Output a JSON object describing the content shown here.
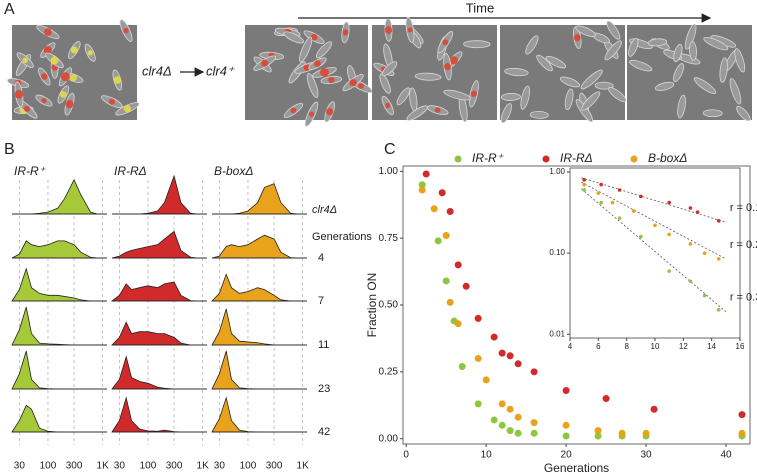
{
  "panel_a": {
    "label": "A",
    "time_label": "Time",
    "from_label": "clr4Δ",
    "to_label": "clr4⁺"
  },
  "panel_b": {
    "label": "B",
    "row_labels": [
      "clr4Δ",
      "4",
      "7",
      "11",
      "23",
      "42"
    ],
    "row_header": "Generations",
    "x": [
      22,
      30,
      40,
      50,
      70,
      100,
      150,
      200,
      300,
      400,
      600,
      800,
      1200
    ],
    "xlim": [
      22,
      1200
    ],
    "xticks": [
      30,
      100,
      300,
      {
        "value": 1000,
        "label": "1K"
      }
    ],
    "columns": [
      {
        "title": "IR-R⁺",
        "color": "#a6c93a",
        "densities": [
          [
            0,
            0,
            0,
            0,
            0.02,
            0.05,
            0.15,
            0.4,
            0.9,
            0.5,
            0.05,
            0,
            0
          ],
          [
            0,
            0.1,
            0.45,
            0.35,
            0.3,
            0.35,
            0.45,
            0.45,
            0.35,
            0.15,
            0.02,
            0,
            0
          ],
          [
            0,
            0.3,
            0.85,
            0.35,
            0.2,
            0.15,
            0.15,
            0.12,
            0.08,
            0.03,
            0,
            0,
            0
          ],
          [
            0,
            0.4,
            1,
            0.3,
            0.05,
            0.03,
            0.02,
            0.01,
            0,
            0,
            0,
            0,
            0
          ],
          [
            0,
            0.4,
            1,
            0.25,
            0.03,
            0.01,
            0,
            0,
            0,
            0,
            0,
            0,
            0
          ],
          [
            0,
            0.3,
            0.7,
            0.6,
            0.1,
            0.02,
            0,
            0,
            0,
            0,
            0,
            0,
            0
          ]
        ]
      },
      {
        "title": "IR-RΔ",
        "color": "#d12a2a",
        "densities": [
          [
            0,
            0,
            0,
            0,
            0,
            0.02,
            0.08,
            0.3,
            1,
            0.3,
            0.02,
            0,
            0
          ],
          [
            0,
            0.05,
            0.15,
            0.2,
            0.25,
            0.3,
            0.35,
            0.5,
            0.7,
            0.2,
            0.02,
            0,
            0
          ],
          [
            0,
            0.15,
            0.45,
            0.3,
            0.35,
            0.4,
            0.35,
            0.45,
            0.5,
            0.15,
            0.01,
            0,
            0
          ],
          [
            0,
            0.2,
            0.6,
            0.3,
            0.35,
            0.35,
            0.3,
            0.3,
            0.2,
            0.05,
            0,
            0,
            0
          ],
          [
            0,
            0.25,
            0.85,
            0.3,
            0.2,
            0.15,
            0.05,
            0.02,
            0,
            0,
            0,
            0,
            0
          ],
          [
            0,
            0.3,
            0.9,
            0.3,
            0.08,
            0.03,
            0.02,
            0.05,
            0.01,
            0,
            0,
            0,
            0
          ]
        ]
      },
      {
        "title": "B-boxΔ",
        "color": "#e9a21c",
        "densities": [
          [
            0,
            0,
            0,
            0,
            0.02,
            0.08,
            0.3,
            0.7,
            0.8,
            0.3,
            0.02,
            0,
            0
          ],
          [
            0,
            0.05,
            0.3,
            0.35,
            0.3,
            0.35,
            0.5,
            0.6,
            0.5,
            0.15,
            0.01,
            0,
            0
          ],
          [
            0,
            0.2,
            0.7,
            0.35,
            0.2,
            0.25,
            0.35,
            0.3,
            0.15,
            0.03,
            0,
            0,
            0
          ],
          [
            0,
            0.35,
            0.95,
            0.3,
            0.1,
            0.08,
            0.06,
            0.03,
            0,
            0,
            0,
            0,
            0
          ],
          [
            0,
            0.4,
            1,
            0.25,
            0.03,
            0.01,
            0,
            0,
            0,
            0,
            0,
            0,
            0
          ],
          [
            0,
            0.35,
            0.9,
            0.3,
            0.05,
            0.01,
            0,
            0,
            0,
            0,
            0,
            0,
            0
          ]
        ]
      }
    ]
  },
  "panel_c_label": "C",
  "chart_data": [
    {
      "type": "scatter",
      "x_label": "Generations",
      "y_label": "Fraction ON",
      "xlim": [
        -0.4,
        43
      ],
      "xticks": [
        0,
        10,
        20,
        30,
        40
      ],
      "ylim": [
        -0.02,
        1.02
      ],
      "yticks": [
        {
          "value": 0,
          "label": "0.00"
        },
        {
          "value": 0.25,
          "label": "0.25"
        },
        {
          "value": 0.5,
          "label": "0.50"
        },
        {
          "value": 0.75,
          "label": "0.75"
        },
        {
          "value": 1,
          "label": "1.00"
        }
      ],
      "series": [
        {
          "name": "IR-R⁺",
          "color": "#8dc63f",
          "x": [
            2,
            4,
            5,
            6,
            7,
            9,
            11,
            12,
            13,
            14,
            16,
            20,
            24,
            27,
            30,
            42
          ],
          "values": [
            0.95,
            0.74,
            0.59,
            0.44,
            0.27,
            0.13,
            0.07,
            0.05,
            0.03,
            0.02,
            0.02,
            0.01,
            0.01,
            0.01,
            0.01,
            0.01
          ]
        },
        {
          "name": "IR-RΔ",
          "color": "#d12a2a",
          "x": [
            2.5,
            4.5,
            5.5,
            6.5,
            7.5,
            9,
            11,
            12,
            13,
            14,
            16,
            20,
            25,
            31,
            42
          ],
          "values": [
            0.99,
            0.92,
            0.85,
            0.65,
            0.57,
            0.45,
            0.38,
            0.32,
            0.31,
            0.28,
            0.25,
            0.18,
            0.15,
            0.11,
            0.09
          ]
        },
        {
          "name": "B-boxΔ",
          "color": "#e9a21c",
          "x": [
            2,
            3.5,
            5,
            5.5,
            6.5,
            9,
            10,
            12,
            13,
            14,
            16,
            20,
            24,
            27,
            30,
            42
          ],
          "values": [
            0.93,
            0.86,
            0.76,
            0.51,
            0.43,
            0.3,
            0.22,
            0.13,
            0.11,
            0.08,
            0.06,
            0.05,
            0.03,
            0.02,
            0.02,
            0.02
          ]
        }
      ]
    },
    {
      "type": "scatter",
      "log_y": true,
      "xlim": [
        4,
        16
      ],
      "xticks": [
        4,
        6,
        8,
        10,
        12,
        14,
        16
      ],
      "ylim": [
        0.009,
        1.12
      ],
      "yticks": [
        {
          "value": 0.01,
          "label": "0.01"
        },
        {
          "value": 0.1,
          "label": "0.10"
        },
        {
          "value": 1,
          "label": "1.00"
        }
      ],
      "series": [
        {
          "color": "#d12a2a",
          "x": [
            5,
            6.2,
            7.5,
            9,
            11,
            12.5,
            13,
            14.5
          ],
          "values": [
            0.8,
            0.7,
            0.6,
            0.5,
            0.42,
            0.36,
            0.32,
            0.25
          ],
          "fit": {
            "x": [
              4.8,
              15
            ],
            "values": [
              0.85,
              0.24
            ],
            "label": "r = 0.13"
          }
        },
        {
          "color": "#e9a21c",
          "x": [
            5,
            6,
            7,
            8.5,
            10,
            11,
            12.5,
            13.5,
            14.5
          ],
          "values": [
            0.7,
            0.55,
            0.42,
            0.33,
            0.22,
            0.17,
            0.13,
            0.1,
            0.085
          ],
          "fit": {
            "x": [
              4.8,
              15
            ],
            "values": [
              0.75,
              0.085
            ],
            "label": "r = 0.22"
          }
        },
        {
          "color": "#8dc63f",
          "x": [
            5,
            6.2,
            7.5,
            9,
            11,
            12.5,
            13.5,
            14.5
          ],
          "values": [
            0.6,
            0.42,
            0.27,
            0.16,
            0.06,
            0.045,
            0.03,
            0.02
          ],
          "fit": {
            "x": [
              4.8,
              15
            ],
            "values": [
              0.62,
              0.019
            ],
            "label": "r = 0.36"
          }
        }
      ]
    }
  ]
}
